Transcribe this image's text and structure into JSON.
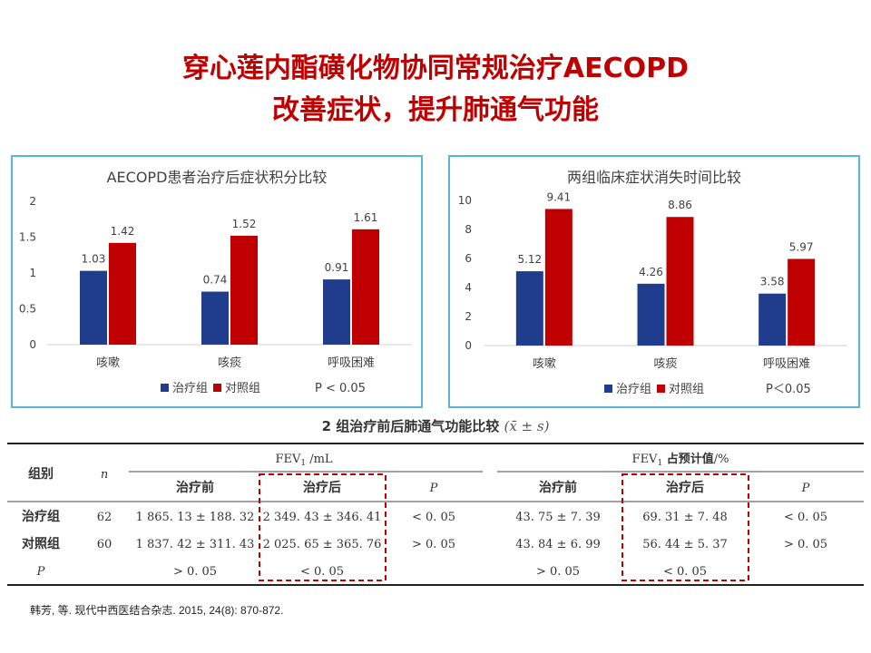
{
  "title": {
    "line1": "穿心莲内酯磺化物协同常规治疗AECOPD",
    "line2": "改善症状，提升肺通气功能"
  },
  "colors": {
    "treatment": "#1f3d8c",
    "control": "#c00000",
    "title": "#c00000",
    "panel_border": "#5ab4d6",
    "dashed_box": "#c00000"
  },
  "chart_data": [
    {
      "type": "bar",
      "title": "AECOPD患者治疗后症状积分比较",
      "categories": [
        "咳嗽",
        "咳痰",
        "呼吸困难"
      ],
      "series": [
        {
          "name": "治疗组",
          "values": [
            1.03,
            0.74,
            0.91
          ]
        },
        {
          "name": "对照组",
          "values": [
            1.42,
            1.52,
            1.61
          ]
        }
      ],
      "ylim": [
        0,
        2
      ],
      "yticks": [
        "0",
        "0.5",
        "1",
        "1.5",
        "2"
      ],
      "legend": "bottom",
      "note": "P < 0.05"
    },
    {
      "type": "bar",
      "title": "两组临床症状消失时间比较",
      "categories": [
        "咳嗽",
        "咳痰",
        "呼吸困难"
      ],
      "series": [
        {
          "name": "治疗组",
          "values": [
            5.12,
            4.26,
            3.58
          ]
        },
        {
          "name": "对照组",
          "values": [
            9.41,
            8.86,
            5.97
          ]
        }
      ],
      "ylim": [
        0,
        10
      ],
      "yticks": [
        "0",
        "2",
        "4",
        "6",
        "8",
        "10"
      ],
      "legend": "bottom",
      "note": "P＜0.05"
    }
  ],
  "table": {
    "caption": "2 组治疗前后肺通气功能比较",
    "caption_math": "(x̄ ± s)",
    "col_group": "组别",
    "col_n": "n",
    "fev1_header": "FEV",
    "fev1_sub": "1",
    "fev1_unit": " /mL",
    "fev1pct_header": "FEV",
    "fev1pct_sub": "1",
    "fev1pct_label": " 占预计值",
    "fev1pct_unit": "/%",
    "sub_before": "治疗前",
    "sub_after": "治疗后",
    "sub_p": "P",
    "rows": [
      {
        "group": "治疗组",
        "n": "62",
        "fev1_before": "1 865. 13 ± 188. 32",
        "fev1_after": "2 349. 43 ± 346. 41",
        "fev1_p": "< 0. 05",
        "pct_before": "43. 75 ± 7. 39",
        "pct_after": "69. 31 ± 7. 48",
        "pct_p": "< 0. 05"
      },
      {
        "group": "对照组",
        "n": "60",
        "fev1_before": "1 837. 42 ± 311. 43",
        "fev1_after": "2 025. 65 ± 365. 76",
        "fev1_p": "> 0. 05",
        "pct_before": "43. 84 ± 6. 99",
        "pct_after": "56. 44 ± 5. 37",
        "pct_p": "> 0. 05"
      },
      {
        "group": "P",
        "n": "",
        "fev1_before": "> 0. 05",
        "fev1_after": "< 0. 05",
        "fev1_p": "",
        "pct_before": "> 0. 05",
        "pct_after": "< 0. 05",
        "pct_p": ""
      }
    ]
  },
  "citation": "韩芳, 等. 现代中西医结合杂志. 2015, 24(8): 870-872."
}
